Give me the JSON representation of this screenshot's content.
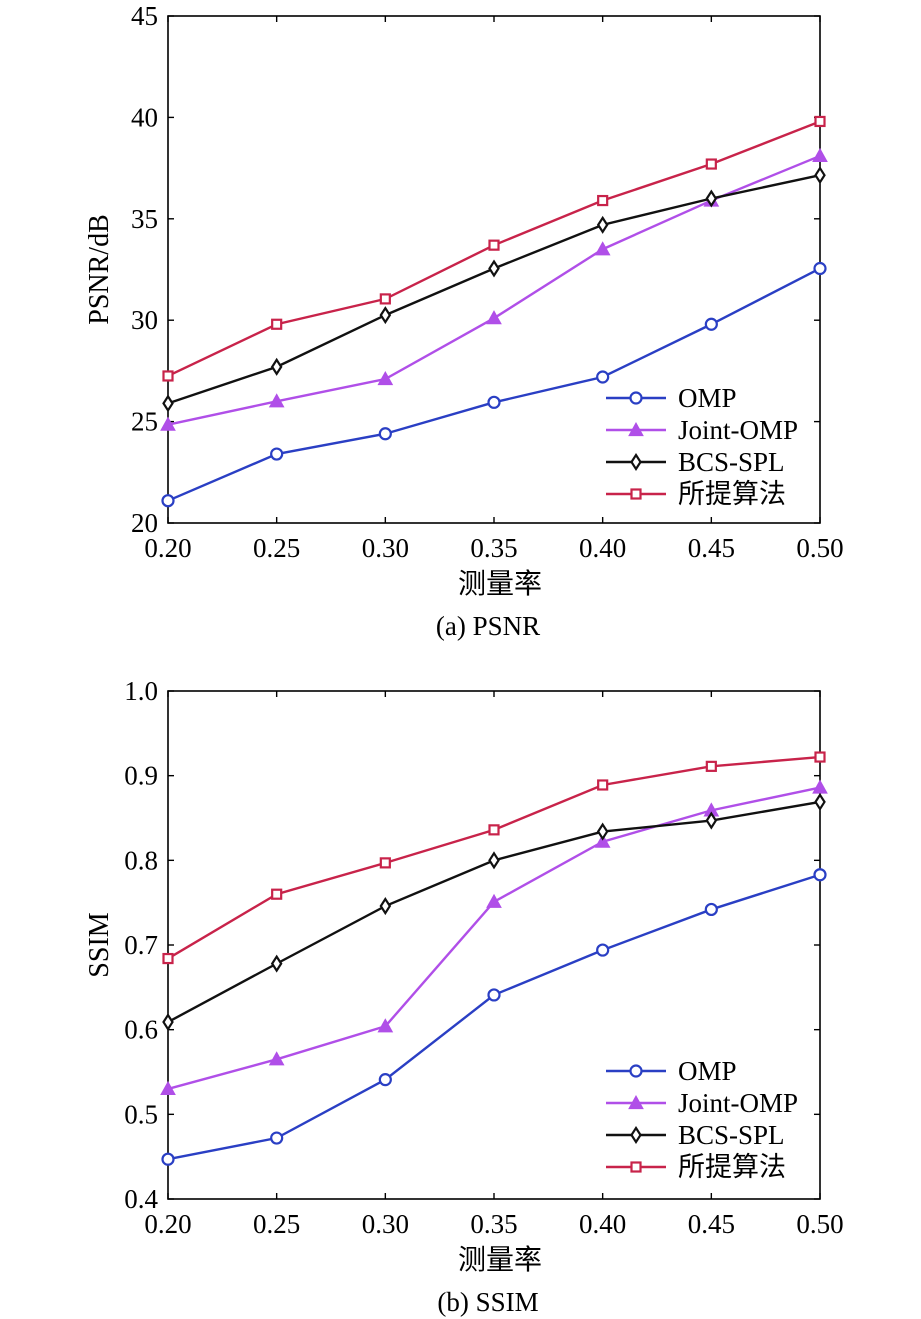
{
  "chart_data": [
    {
      "type": "line",
      "caption": "(a) PSNR",
      "xlabel": "测量率",
      "ylabel": "PSNR/dB",
      "x": [
        0.2,
        0.25,
        0.3,
        0.35,
        0.4,
        0.45,
        0.5
      ],
      "x_ticks": [
        "0.20",
        "0.25",
        "0.30",
        "0.35",
        "0.40",
        "0.45",
        "0.50"
      ],
      "xlim": [
        0.2,
        0.5
      ],
      "ylim": [
        20,
        45
      ],
      "y_ticks": [
        "20",
        "25",
        "30",
        "35",
        "40",
        "45"
      ],
      "legend_position": "lower-right",
      "series": [
        {
          "name": "OMP",
          "color": "#2a3fc4",
          "marker": "circle",
          "values": [
            21.1,
            23.4,
            24.4,
            25.95,
            27.2,
            29.8,
            32.55
          ]
        },
        {
          "name": "Joint-OMP",
          "color": "#b04fe8",
          "marker": "triangle",
          "values": [
            24.85,
            26.0,
            27.1,
            30.1,
            33.5,
            35.9,
            38.1
          ]
        },
        {
          "name": "BCS-SPL",
          "color": "#111111",
          "marker": "diamond",
          "values": [
            25.9,
            27.7,
            30.25,
            32.55,
            34.7,
            36.0,
            37.15
          ]
        },
        {
          "name": "所提算法",
          "color": "#c8234a",
          "marker": "square",
          "values": [
            27.25,
            29.8,
            31.05,
            33.7,
            35.9,
            37.7,
            39.8
          ]
        }
      ]
    },
    {
      "type": "line",
      "caption": "(b) SSIM",
      "xlabel": "测量率",
      "ylabel": "SSIM",
      "x": [
        0.2,
        0.25,
        0.3,
        0.35,
        0.4,
        0.45,
        0.5
      ],
      "x_ticks": [
        "0.20",
        "0.25",
        "0.30",
        "0.35",
        "0.40",
        "0.45",
        "0.50"
      ],
      "xlim": [
        0.2,
        0.5
      ],
      "ylim": [
        0.4,
        1.0
      ],
      "y_ticks": [
        "0.4",
        "0.5",
        "0.6",
        "0.7",
        "0.8",
        "0.9",
        "1.0"
      ],
      "legend_position": "lower-right",
      "series": [
        {
          "name": "OMP",
          "color": "#2a3fc4",
          "marker": "circle",
          "values": [
            0.447,
            0.472,
            0.541,
            0.641,
            0.694,
            0.742,
            0.783
          ]
        },
        {
          "name": "Joint-OMP",
          "color": "#b04fe8",
          "marker": "triangle",
          "values": [
            0.53,
            0.565,
            0.604,
            0.751,
            0.822,
            0.859,
            0.886
          ]
        },
        {
          "name": "BCS-SPL",
          "color": "#111111",
          "marker": "diamond",
          "values": [
            0.609,
            0.678,
            0.746,
            0.8,
            0.834,
            0.847,
            0.869
          ]
        },
        {
          "name": "所提算法",
          "color": "#c8234a",
          "marker": "square",
          "values": [
            0.684,
            0.76,
            0.797,
            0.836,
            0.889,
            0.911,
            0.922
          ]
        }
      ]
    }
  ]
}
